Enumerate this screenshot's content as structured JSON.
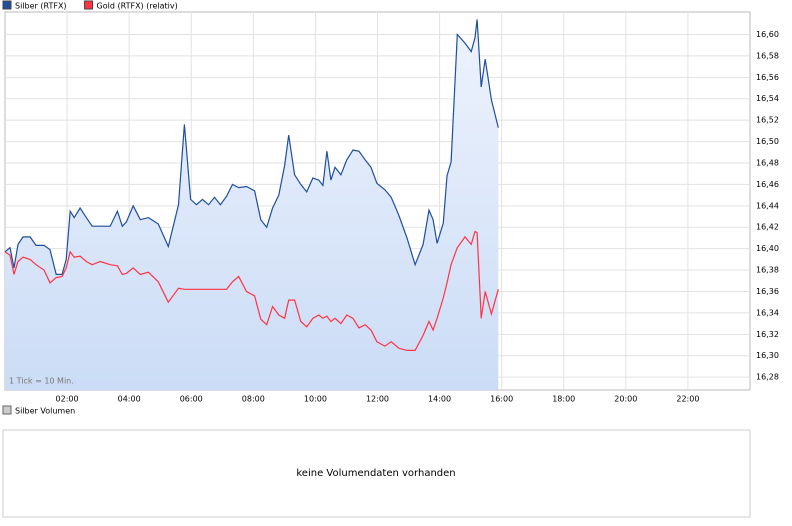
{
  "chart_data": {
    "type": "line",
    "legend": [
      "Silber (RTFX)",
      "Gold (RTFX) (relativ)"
    ],
    "annotation": "1 Tick = 10 Min.",
    "x": [
      0,
      0.16,
      0.29,
      0.42,
      0.58,
      0.81,
      1.0,
      1.26,
      1.45,
      1.65,
      1.84,
      1.97,
      2.1,
      2.23,
      2.42,
      2.62,
      2.81,
      3.07,
      3.39,
      3.62,
      3.78,
      3.91,
      4.13,
      4.36,
      4.62,
      4.94,
      5.26,
      5.59,
      5.78,
      5.98,
      6.17,
      6.36,
      6.56,
      6.75,
      6.94,
      7.14,
      7.33,
      7.53,
      7.78,
      8.04,
      8.24,
      8.43,
      8.62,
      8.82,
      9.01,
      9.14,
      9.33,
      9.53,
      9.72,
      9.92,
      10.11,
      10.24,
      10.37,
      10.5,
      10.63,
      10.82,
      11.01,
      11.21,
      11.4,
      11.6,
      11.79,
      11.98,
      12.24,
      12.44,
      12.69,
      12.95,
      13.21,
      13.47,
      13.66,
      13.79,
      13.92,
      14.12,
      14.24,
      14.37,
      14.57,
      14.82,
      15.02,
      15.14,
      15.21,
      15.34,
      15.47,
      15.67,
      15.89
    ],
    "series": [
      {
        "name": "Silber (RTFX)",
        "color": "#1f4e9c",
        "area": true,
        "values": [
          16.397,
          16.401,
          16.382,
          16.404,
          16.411,
          16.411,
          16.403,
          16.403,
          16.399,
          16.376,
          16.376,
          16.39,
          16.435,
          16.429,
          16.438,
          16.429,
          16.421,
          16.421,
          16.421,
          16.435,
          16.421,
          16.425,
          16.44,
          16.427,
          16.429,
          16.423,
          16.402,
          16.441,
          16.516,
          16.446,
          16.441,
          16.446,
          16.441,
          16.448,
          16.441,
          16.449,
          16.46,
          16.457,
          16.458,
          16.454,
          16.427,
          16.42,
          16.438,
          16.45,
          16.478,
          16.506,
          16.469,
          16.46,
          16.453,
          16.466,
          16.464,
          16.459,
          16.491,
          16.464,
          16.476,
          16.469,
          16.483,
          16.492,
          16.491,
          16.483,
          16.476,
          16.461,
          16.455,
          16.448,
          16.431,
          16.41,
          16.385,
          16.404,
          16.436,
          16.427,
          16.405,
          16.424,
          16.468,
          16.481,
          16.6,
          16.592,
          16.584,
          16.597,
          16.614,
          16.551,
          16.577,
          16.539,
          16.513
        ]
      },
      {
        "name": "Gold (RTFX) (relativ)",
        "color": "#ff3344",
        "area": false,
        "values": [
          16.397,
          16.394,
          16.376,
          16.388,
          16.392,
          16.39,
          16.385,
          16.38,
          16.368,
          16.373,
          16.374,
          16.382,
          16.397,
          16.392,
          16.393,
          16.388,
          16.385,
          16.388,
          16.385,
          16.384,
          16.376,
          16.377,
          16.382,
          16.376,
          16.378,
          16.369,
          16.35,
          16.363,
          16.362,
          16.362,
          16.362,
          16.362,
          16.362,
          16.362,
          16.362,
          16.362,
          16.369,
          16.374,
          16.36,
          16.356,
          16.334,
          16.329,
          16.346,
          16.338,
          16.335,
          16.352,
          16.352,
          16.332,
          16.327,
          16.335,
          16.338,
          16.335,
          16.337,
          16.332,
          16.335,
          16.33,
          16.338,
          16.335,
          16.326,
          16.329,
          16.324,
          16.313,
          16.309,
          16.313,
          16.307,
          16.305,
          16.305,
          16.319,
          16.332,
          16.324,
          16.335,
          16.354,
          16.368,
          16.385,
          16.401,
          16.411,
          16.404,
          16.416,
          16.415,
          16.335,
          16.36,
          16.339,
          16.362
        ]
      }
    ],
    "xlim": [
      0,
      24
    ],
    "xticks": [
      {
        "value": 2,
        "label": "02:00"
      },
      {
        "value": 4,
        "label": "04:00"
      },
      {
        "value": 6,
        "label": "06:00"
      },
      {
        "value": 8,
        "label": "08:00"
      },
      {
        "value": 10,
        "label": "10:00"
      },
      {
        "value": 12,
        "label": "12:00"
      },
      {
        "value": 14,
        "label": "14:00"
      },
      {
        "value": 16,
        "label": "16:00"
      },
      {
        "value": 18,
        "label": "18:00"
      },
      {
        "value": 20,
        "label": "20:00"
      },
      {
        "value": 22,
        "label": "22:00"
      }
    ],
    "ylim": [
      16.268,
      16.621
    ],
    "yticks": [
      {
        "value": 16.28,
        "label": "16,28"
      },
      {
        "value": 16.3,
        "label": "16,30"
      },
      {
        "value": 16.32,
        "label": "16,32"
      },
      {
        "value": 16.34,
        "label": "16,34"
      },
      {
        "value": 16.36,
        "label": "16,36"
      },
      {
        "value": 16.38,
        "label": "16,38"
      },
      {
        "value": 16.4,
        "label": "16,40"
      },
      {
        "value": 16.42,
        "label": "16,42"
      },
      {
        "value": 16.44,
        "label": "16,44"
      },
      {
        "value": 16.46,
        "label": "16,46"
      },
      {
        "value": 16.48,
        "label": "16,48"
      },
      {
        "value": 16.5,
        "label": "16,50"
      },
      {
        "value": 16.52,
        "label": "16,52"
      },
      {
        "value": 16.54,
        "label": "16,54"
      },
      {
        "value": 16.56,
        "label": "16,56"
      },
      {
        "value": 16.58,
        "label": "16,58"
      },
      {
        "value": 16.6,
        "label": "16,60"
      }
    ],
    "grid": true,
    "volume": {
      "legend": "Silber Volumen",
      "message": "keine Volumendaten vorhanden"
    }
  }
}
